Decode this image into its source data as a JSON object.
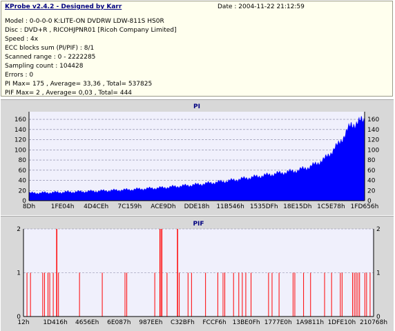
{
  "header": {
    "title": "KProbe v2.4.2 - Designed by Karr",
    "date_label": "Date :",
    "date_value": "2004-11-22 21:12:59"
  },
  "info_lines": [
    "Model : 0-0-0-0 K:LITE-ON DVDRW LDW-811S   HS0R",
    "Disc : DVD+R , RICOHJPNR01 [Ricoh Company Limited]",
    "Speed : 4x",
    "ECC blocks sum (PI/PIF) : 8/1",
    "Scanned range : 0 - 2222285",
    "Sampling count : 104428",
    "Errors : 0",
    "PI Max= 175 , Average= 33,36 , Total= 537825",
    "PIF Max= 2 , Average= 0,03 , Total= 444"
  ],
  "colors": {
    "pi_fill": "#0000ff",
    "pif_bar": "#ff0000",
    "plot_bg": "#f0f0fc",
    "grid": "#8080a0",
    "title": "#000080"
  },
  "chart_data": [
    {
      "type": "bar",
      "title": "PI",
      "ylim": [
        0,
        175
      ],
      "yticks": [
        0,
        20,
        40,
        60,
        80,
        100,
        120,
        140,
        160
      ],
      "xlabels": [
        "8Dh",
        "1FE04h",
        "4D4CEh",
        "7C159h",
        "ACE9Dh",
        "DDE18h",
        "11B546h",
        "1535DFh",
        "18E15Dh",
        "1C5E78h",
        "1FD656h"
      ],
      "grid": "dashed horizontal",
      "x_frac": [
        0,
        0.1,
        0.2,
        0.3,
        0.4,
        0.5,
        0.6,
        0.65,
        0.7,
        0.75,
        0.8,
        0.84,
        0.88,
        0.92,
        0.96,
        1.0
      ],
      "y": [
        15,
        17,
        19,
        22,
        26,
        32,
        40,
        45,
        50,
        55,
        60,
        68,
        82,
        110,
        150,
        160
      ]
    },
    {
      "type": "bar",
      "title": "PIF",
      "ylim": [
        0,
        2
      ],
      "yticks": [
        0,
        1,
        2
      ],
      "xlabels": [
        "12h",
        "1D416h",
        "4656Eh",
        "6E087h",
        "987EEh",
        "C32BFh",
        "FCCF6h",
        "13BE0Fh",
        "1777E0h",
        "1A9811h",
        "1DFE10h",
        "210768h"
      ],
      "grid": "dashed horizontal",
      "ones": [
        0.01,
        0.02,
        0.055,
        0.06,
        0.07,
        0.075,
        0.085,
        0.1,
        0.16,
        0.225,
        0.29,
        0.295,
        0.375,
        0.39,
        0.41,
        0.445,
        0.47,
        0.48,
        0.52,
        0.555,
        0.57,
        0.575,
        0.6,
        0.615,
        0.625,
        0.635,
        0.65,
        0.7,
        0.71,
        0.73,
        0.77,
        0.775,
        0.8,
        0.82,
        0.86,
        0.88,
        0.905,
        0.91,
        0.94,
        0.945,
        0.95,
        0.955,
        0.96,
        0.975,
        0.98,
        0.99
      ],
      "twos": [
        0.095,
        0.39,
        0.395,
        0.44
      ]
    }
  ]
}
